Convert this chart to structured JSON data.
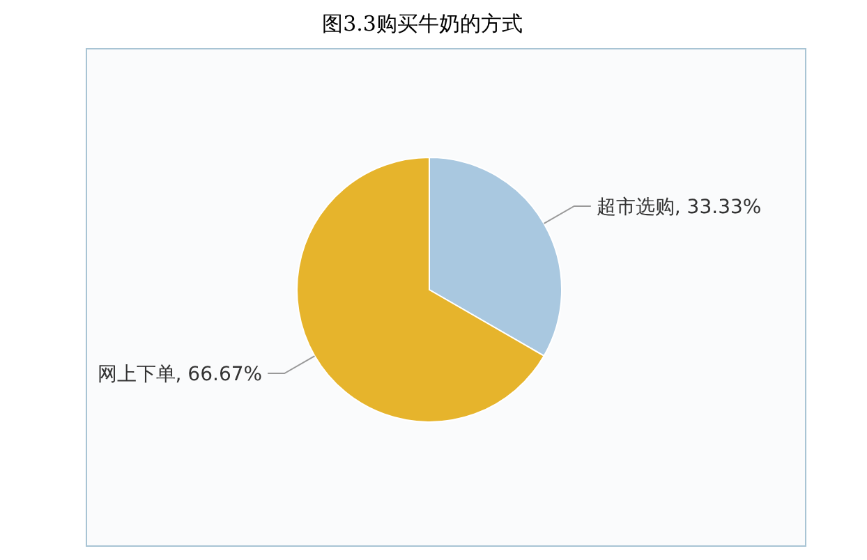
{
  "chart_data": {
    "type": "pie",
    "title": "图3.3购买牛奶的方式",
    "categories": [
      "超市选购",
      "网上下单"
    ],
    "values": [
      33.33,
      66.67
    ],
    "colors": [
      "#a9c8e0",
      "#e6b42c"
    ],
    "value_labels": [
      "33.33%",
      "66.67%"
    ]
  }
}
